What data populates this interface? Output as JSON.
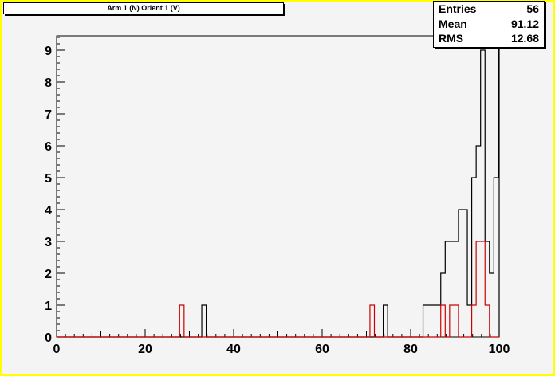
{
  "title": "Arm 1 (N) Orient 1 (V)",
  "stats": {
    "entries_label": "Entries",
    "entries_value": "56",
    "mean_label": "Mean",
    "mean_value": "91.12",
    "rms_label": "RMS",
    "rms_value": "12.68"
  },
  "colors": {
    "frame": "#ffff00",
    "pad": "#f4f4f4",
    "primary": "#000000",
    "secondary": "#cc0000"
  },
  "chart_data": {
    "type": "histogram",
    "title": "Arm 1 (N) Orient 1 (V)",
    "xlim": [
      0,
      100
    ],
    "ylim": [
      0,
      9.5
    ],
    "x_ticks": [
      0,
      20,
      40,
      60,
      80,
      100
    ],
    "y_ticks": [
      0,
      1,
      2,
      3,
      4,
      5,
      6,
      7,
      8,
      9
    ],
    "grid": false,
    "series": [
      {
        "color": "#000000",
        "bins": [
          {
            "x0": 32.8,
            "x1": 33.8,
            "y": 1
          },
          {
            "x0": 73.8,
            "x1": 74.8,
            "y": 1
          },
          {
            "x0": 82.8,
            "x1": 86.8,
            "y": 1
          },
          {
            "x0": 86.8,
            "x1": 87.8,
            "y": 2
          },
          {
            "x0": 87.8,
            "x1": 88.8,
            "y": 3
          },
          {
            "x0": 88.8,
            "x1": 90.8,
            "y": 3
          },
          {
            "x0": 90.8,
            "x1": 92.8,
            "y": 4
          },
          {
            "x0": 92.8,
            "x1": 93.8,
            "y": 1
          },
          {
            "x0": 93.8,
            "x1": 94.8,
            "y": 5
          },
          {
            "x0": 94.8,
            "x1": 95.8,
            "y": 6
          },
          {
            "x0": 95.8,
            "x1": 96.8,
            "y": 9
          },
          {
            "x0": 96.8,
            "x1": 97.8,
            "y": 3
          },
          {
            "x0": 97.8,
            "x1": 98.8,
            "y": 2
          },
          {
            "x0": 98.8,
            "x1": 99.8,
            "y": 5
          },
          {
            "x0": 99.8,
            "x1": 100,
            "y": 9.5
          }
        ]
      },
      {
        "color": "#cc0000",
        "bins": [
          {
            "x0": 27.8,
            "x1": 28.8,
            "y": 1
          },
          {
            "x0": 70.8,
            "x1": 71.8,
            "y": 1
          },
          {
            "x0": 86.8,
            "x1": 87.8,
            "y": 1
          },
          {
            "x0": 88.8,
            "x1": 89.8,
            "y": 1
          },
          {
            "x0": 89.8,
            "x1": 90.8,
            "y": 1
          },
          {
            "x0": 93.8,
            "x1": 94.8,
            "y": 1
          },
          {
            "x0": 94.8,
            "x1": 96.8,
            "y": 3
          },
          {
            "x0": 96.8,
            "x1": 97.8,
            "y": 1
          }
        ]
      }
    ]
  }
}
